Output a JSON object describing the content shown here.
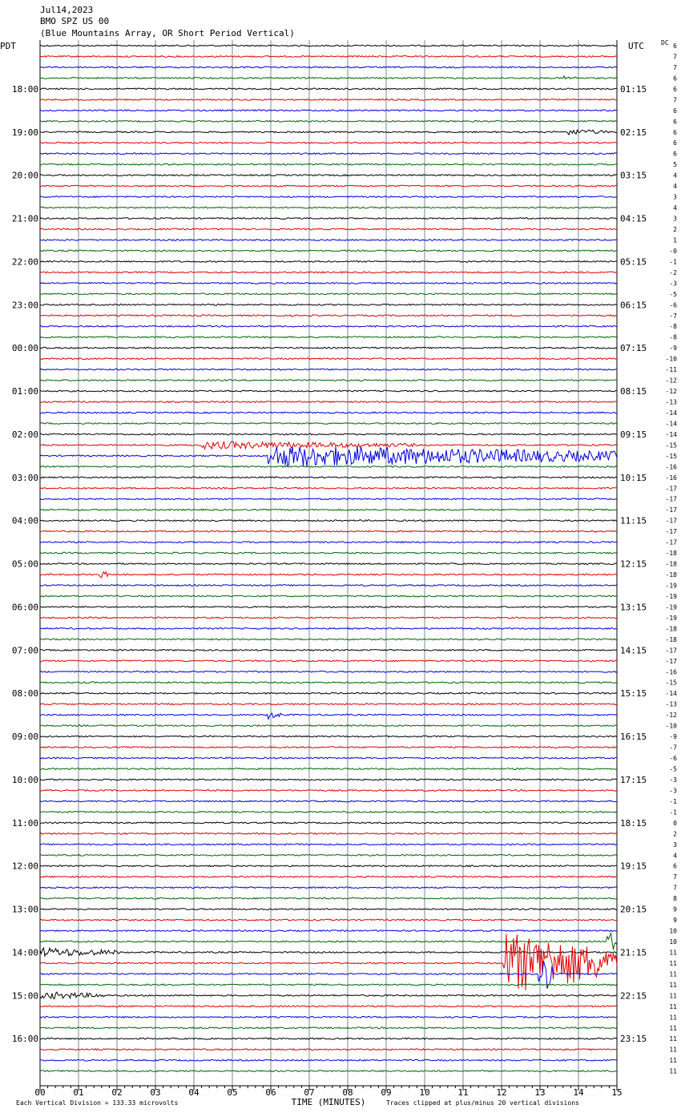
{
  "chart_data": {
    "type": "helicorder",
    "title": "Jul14,2023",
    "subtitle": "BMO SPZ US 00",
    "description": "(Blue Mountains Array, OR Short Period Vertical)",
    "left_axis_label": "PDT",
    "right_axis_label": "UTC",
    "dc_header": "DC",
    "xlabel": "TIME (MINUTES)",
    "scale_note": "Each Vertical Division =  133.33 microvolts",
    "clip_note": "Traces clipped at plus/minus 20 vertical divisions",
    "xlim": [
      0,
      15
    ],
    "xticks": [
      {
        "value": 0,
        "label": "00"
      },
      {
        "value": 1,
        "label": "01"
      },
      {
        "value": 2,
        "label": "02"
      },
      {
        "value": 3,
        "label": "03"
      },
      {
        "value": 4,
        "label": "04"
      },
      {
        "value": 5,
        "label": "05"
      },
      {
        "value": 6,
        "label": "06"
      },
      {
        "value": 7,
        "label": "07"
      },
      {
        "value": 8,
        "label": "08"
      },
      {
        "value": 9,
        "label": "09"
      },
      {
        "value": 10,
        "label": "10"
      },
      {
        "value": 11,
        "label": "11"
      },
      {
        "value": 12,
        "label": "12"
      },
      {
        "value": 13,
        "label": "13"
      },
      {
        "value": 14,
        "label": "14"
      },
      {
        "value": 15,
        "label": "15"
      }
    ],
    "trace_colors": [
      "#000000",
      "#e00000",
      "#0000e0",
      "#006400"
    ],
    "left_labels": [
      "18:00",
      "19:00",
      "20:00",
      "21:00",
      "22:00",
      "23:00",
      "00:00",
      "01:00",
      "02:00",
      "03:00",
      "04:00",
      "05:00",
      "06:00",
      "07:00",
      "08:00",
      "09:00",
      "10:00",
      "11:00",
      "12:00",
      "13:00",
      "14:00",
      "15:00",
      "16:00"
    ],
    "right_labels": [
      "01:15",
      "02:15",
      "03:15",
      "04:15",
      "05:15",
      "06:15",
      "07:15",
      "08:15",
      "09:15",
      "10:15",
      "11:15",
      "12:15",
      "13:15",
      "14:15",
      "15:15",
      "16:15",
      "17:15",
      "18:15",
      "19:15",
      "20:15",
      "21:15",
      "22:15",
      "23:15"
    ],
    "dc_values": [
      "6",
      "7",
      "7",
      "6",
      "6",
      "7",
      "6",
      "6",
      "6",
      "6",
      "6",
      "5",
      "4",
      "4",
      "3",
      "4",
      "3",
      "2",
      "1",
      "-0",
      "-1",
      "-2",
      "-3",
      "-5",
      "-6",
      "-7",
      "-8",
      "-8",
      "-9",
      "-10",
      "-11",
      "-12",
      "-12",
      "-13",
      "-14",
      "-14",
      "-14",
      "-15",
      "-15",
      "-16",
      "-16",
      "-17",
      "-17",
      "-17",
      "-17",
      "-17",
      "-17",
      "-18",
      "-18",
      "-18",
      "-19",
      "-19",
      "-19",
      "-19",
      "-18",
      "-18",
      "-17",
      "-17",
      "-16",
      "-15",
      "-14",
      "-13",
      "-12",
      "-10",
      "-9",
      "-7",
      "-6",
      "-5",
      "-3",
      "-3",
      "-1",
      "-1",
      "0",
      "2",
      "3",
      "4",
      "6",
      "7",
      "7",
      "8",
      "9",
      "9",
      "10",
      "10",
      "11",
      "11",
      "11",
      "11",
      "11",
      "11",
      "11",
      "11",
      "11",
      "11",
      "11",
      "11"
    ]
  }
}
